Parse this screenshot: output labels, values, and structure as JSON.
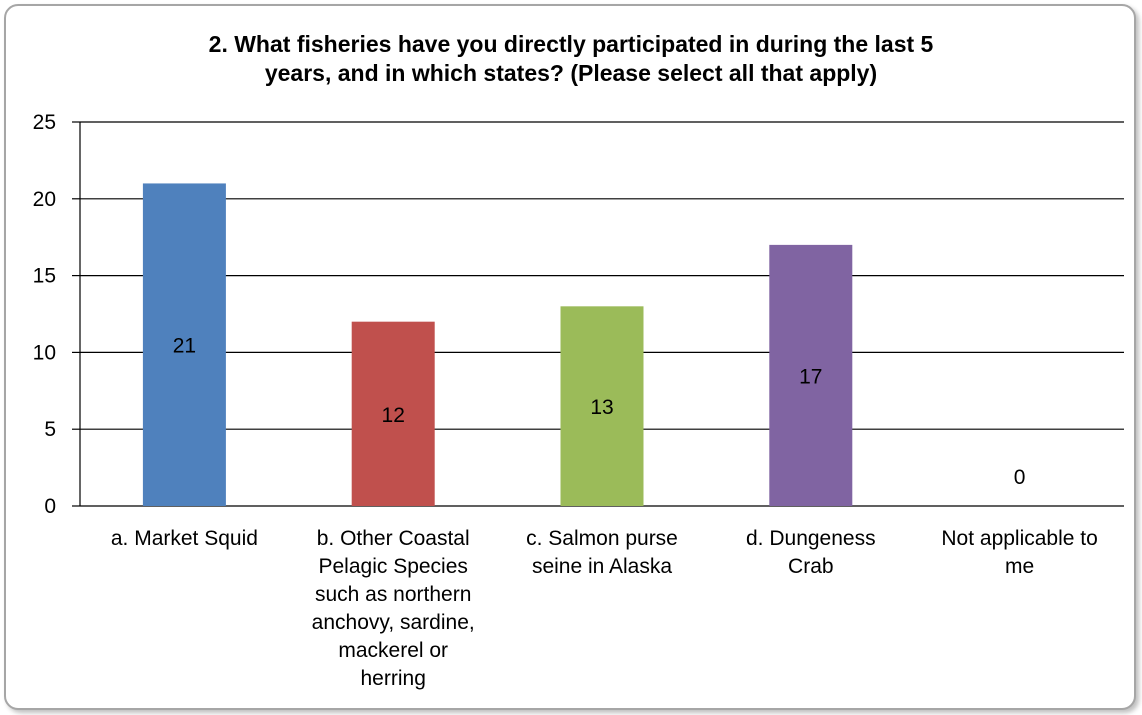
{
  "chart_data": {
    "type": "bar",
    "title_lines": [
      "2.  What fisheries have you directly participated in during the last 5",
      "years, and in which states? (Please select all that apply)"
    ],
    "categories": [
      [
        "a. Market Squid"
      ],
      [
        "b.  Other Coastal",
        "Pelagic Species",
        "such as northern",
        "anchovy, sardine,",
        "mackerel or",
        "herring"
      ],
      [
        "c.  Salmon purse",
        "seine in Alaska"
      ],
      [
        "d.  Dungeness",
        "Crab"
      ],
      [
        "Not applicable to",
        "me"
      ]
    ],
    "values": [
      21,
      12,
      13,
      17,
      0
    ],
    "data_labels": [
      "21",
      "12",
      "13",
      "17",
      "0"
    ],
    "colors": [
      "#4f81bd",
      "#c0504d",
      "#9bbb59",
      "#8064a2",
      "#4bacc6"
    ],
    "ylim": [
      0,
      25
    ],
    "yticks": [
      0,
      5,
      10,
      15,
      20,
      25
    ],
    "xlabel": "",
    "ylabel": "",
    "grid": true,
    "legend": "none"
  }
}
